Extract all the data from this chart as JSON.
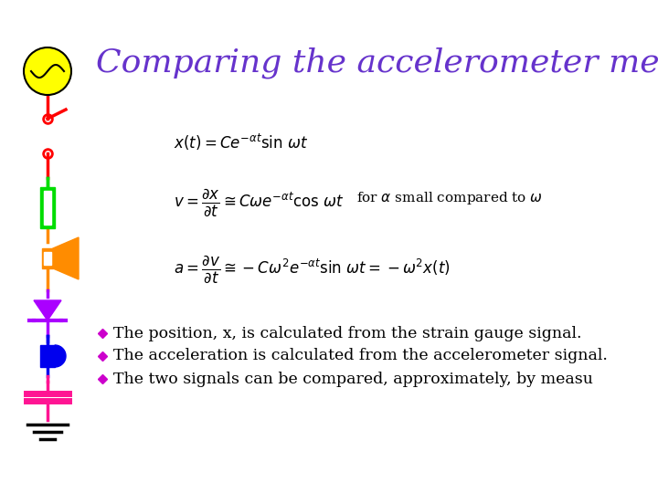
{
  "title": "Comparing the accelerometer meas",
  "title_color": "#6633CC",
  "title_fontsize": 26,
  "bg_color": "#FFFFFF",
  "bullet_color": "#CC00CC",
  "bullet_points": [
    "The position, x, is calculated from the strain gauge signal.",
    "The acceleration is calculated from the accelerometer signal.",
    "The two signals can be compared, approximately, by measu"
  ],
  "bullet_fontsize": 12.5,
  "schematic_color_ac": "#FFFF00",
  "schematic_color_switch": "#FF0000",
  "schematic_color_resistor": "#00DD00",
  "schematic_color_speaker": "#FF8C00",
  "schematic_color_diode": "#AA00FF",
  "schematic_color_led": "#0000EE",
  "schematic_color_capacitor": "#FF1493",
  "schematic_color_ground": "#000000",
  "schematic_color_wire_red": "#FF0000",
  "schematic_color_wire_green": "#00CC00",
  "schematic_color_wire_purple": "#AA00FF",
  "schematic_color_wire_blue": "#0000EE",
  "schematic_color_wire_pink": "#FF1493"
}
